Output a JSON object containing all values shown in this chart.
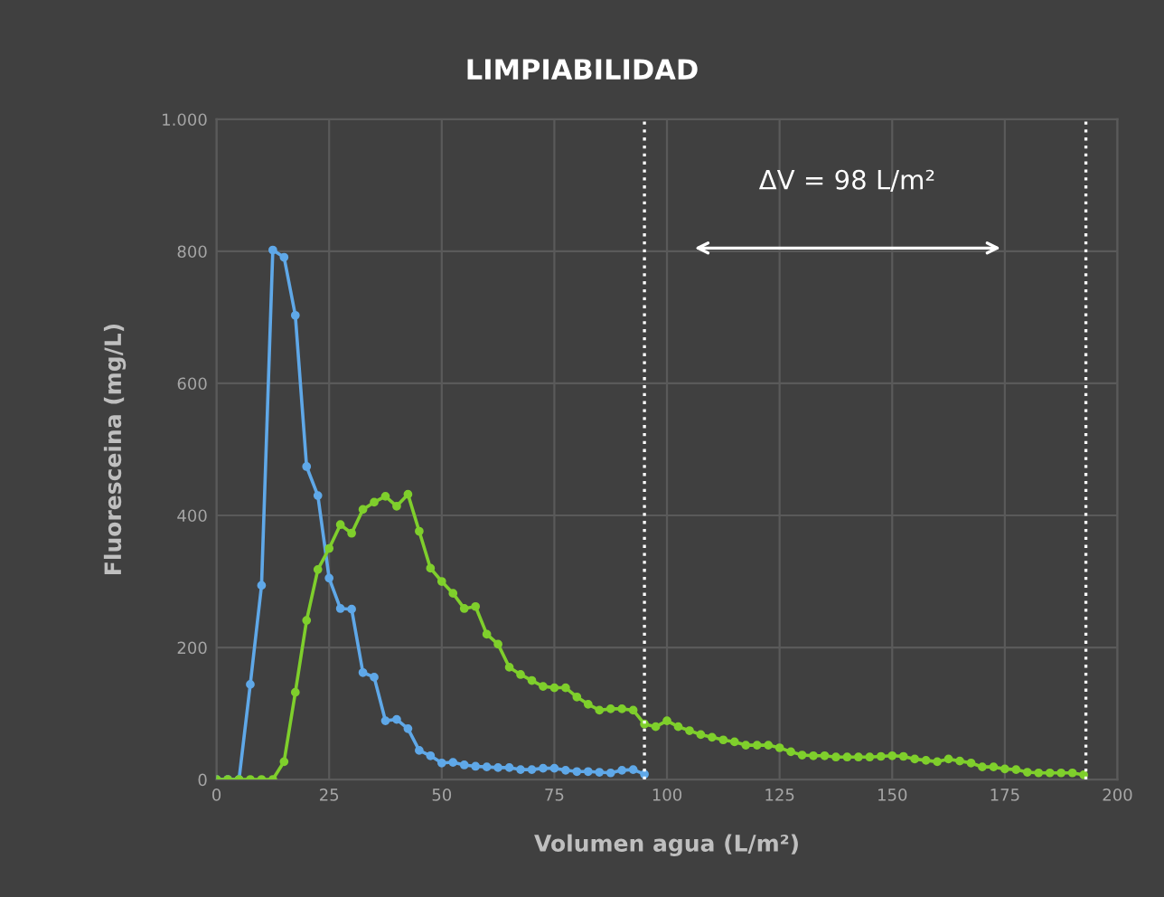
{
  "chart_data": {
    "type": "line",
    "title": "LIMPIABILIDAD",
    "xlabel": "Volumen agua (L/m²)",
    "ylabel": "Fluoresceina (mg/L)",
    "marker": "circle",
    "line_style": "solid",
    "grid": true,
    "xlim": [
      0,
      200
    ],
    "xticks": [
      0,
      25,
      50,
      75,
      100,
      125,
      150,
      175,
      200
    ],
    "ylim": [
      0,
      1000
    ],
    "yticks": [
      0,
      200,
      400,
      600,
      800,
      {
        "value": 1000,
        "label": "1.000"
      }
    ],
    "series": [
      {
        "color": "#5fa8e8",
        "x": [
          0,
          2.5,
          5,
          7.5,
          10,
          12.5,
          15,
          17.5,
          20,
          22.5,
          25,
          27.5,
          30,
          32.5,
          35,
          37.5,
          40,
          42.5,
          45,
          47.5,
          50,
          52.5,
          55,
          57.5,
          60,
          62.5,
          65,
          67.5,
          70,
          72.5,
          75,
          77.5,
          80,
          82.5,
          85,
          87.5,
          90,
          92.5,
          95
        ],
        "values": [
          0,
          0,
          0,
          144,
          294,
          802,
          791,
          703,
          474,
          430,
          305,
          259,
          258,
          162,
          155,
          89,
          91,
          77,
          44,
          36,
          25,
          26,
          22,
          20,
          19,
          18,
          18,
          15,
          15,
          17,
          17,
          14,
          12,
          12,
          11,
          10,
          14,
          15,
          8
        ]
      },
      {
        "color": "#7fcf2c",
        "x": [
          0,
          2.5,
          5,
          7.5,
          10,
          12.5,
          15,
          17.5,
          20,
          22.5,
          25,
          27.5,
          30,
          32.5,
          35,
          37.5,
          40,
          42.5,
          45,
          47.5,
          50,
          52.5,
          55,
          57.5,
          60,
          62.5,
          65,
          67.5,
          70,
          72.5,
          75,
          77.5,
          80,
          82.5,
          85,
          87.5,
          90,
          92.5,
          95,
          97.5,
          100,
          102.5,
          105,
          107.5,
          110,
          112.5,
          115,
          117.5,
          120,
          122.5,
          125,
          127.5,
          130,
          132.5,
          135,
          137.5,
          140,
          142.5,
          145,
          147.5,
          150,
          152.5,
          155,
          157.5,
          160,
          162.5,
          165,
          167.5,
          170,
          172.5,
          175,
          177.5,
          180,
          182.5,
          185,
          187.5,
          190,
          192.5
        ],
        "values": [
          0,
          0,
          0,
          0,
          0,
          0,
          27,
          132,
          241,
          318,
          350,
          386,
          373,
          409,
          420,
          429,
          414,
          432,
          376,
          320,
          300,
          282,
          259,
          262,
          220,
          205,
          170,
          159,
          150,
          141,
          139,
          139,
          125,
          114,
          105,
          107,
          107,
          105,
          84,
          80,
          89,
          80,
          74,
          68,
          64,
          60,
          57,
          52,
          52,
          52,
          48,
          42,
          37,
          36,
          36,
          34,
          34,
          34,
          34,
          35,
          36,
          35,
          31,
          29,
          27,
          31,
          28,
          25,
          19,
          19,
          16,
          15,
          11,
          10,
          10,
          10,
          10,
          7
        ]
      }
    ],
    "ref_lines": [
      {
        "axis": "x",
        "value": 95,
        "color": "#ffffff",
        "line_style": "dotted"
      },
      {
        "axis": "x",
        "value": 193,
        "color": "#ffffff",
        "line_style": "dotted"
      }
    ],
    "annotations": [
      "ΔV = 98 L/m²"
    ]
  }
}
